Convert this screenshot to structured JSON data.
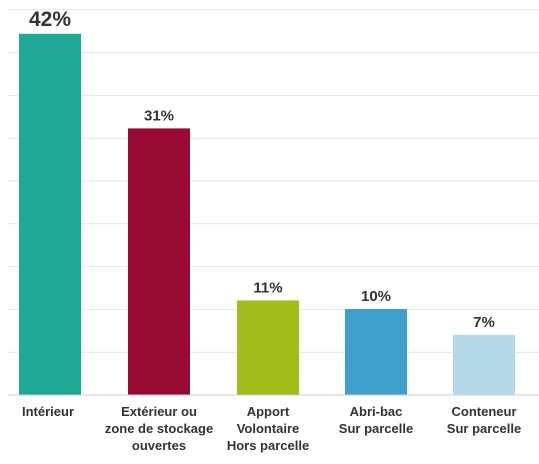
{
  "chart_data": {
    "type": "bar",
    "categories": [
      [
        "Intérieur"
      ],
      [
        "Extérieur ou",
        "zone de stockage",
        "ouvertes"
      ],
      [
        "Apport",
        "Volontaire",
        "Hors parcelle"
      ],
      [
        "Abri-bac",
        "Sur parcelle"
      ],
      [
        "Conteneur",
        "Sur parcelle"
      ]
    ],
    "values": [
      42,
      31,
      11,
      10,
      7
    ],
    "value_labels": [
      "42%",
      "31%",
      "11%",
      "10%",
      "7%"
    ],
    "colors": [
      "#1fa896",
      "#990a32",
      "#a3bd1a",
      "#3fa0cc",
      "#b2d9e8"
    ],
    "ylim": [
      0,
      45
    ],
    "grid": true,
    "xlabel": "",
    "ylabel": ""
  }
}
